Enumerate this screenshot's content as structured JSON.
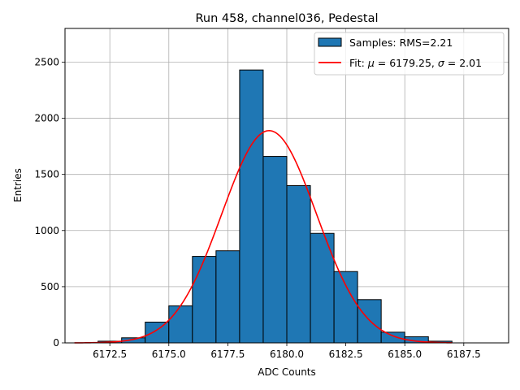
{
  "chart_data": {
    "type": "bar",
    "title": "Run 458, channel036, Pedestal",
    "xlabel": "ADC Counts",
    "ylabel": "Entries",
    "xlim": [
      6170.6,
      6189.4
    ],
    "ylim": [
      0,
      2800
    ],
    "grid": true,
    "legend_position": "top-right",
    "x_ticks": [
      6172.5,
      6175.0,
      6177.5,
      6180.0,
      6182.5,
      6185.0,
      6187.5
    ],
    "x_tick_labels": [
      "6172.5",
      "6175.0",
      "6177.5",
      "6180.0",
      "6182.5",
      "6185.0",
      "6187.5"
    ],
    "y_ticks": [
      0,
      500,
      1000,
      1500,
      2000,
      2500
    ],
    "y_tick_labels": [
      "0",
      "500",
      "1000",
      "1500",
      "2000",
      "2500"
    ],
    "histogram": {
      "legend": "Samples: RMS=2.21",
      "color": "#1f77b4",
      "edge_color": "#000000",
      "bins": [
        {
          "x0": 6172,
          "x1": 6173,
          "count": 15
        },
        {
          "x0": 6173,
          "x1": 6174,
          "count": 45
        },
        {
          "x0": 6174,
          "x1": 6175,
          "count": 185
        },
        {
          "x0": 6175,
          "x1": 6176,
          "count": 330
        },
        {
          "x0": 6176,
          "x1": 6177,
          "count": 770
        },
        {
          "x0": 6177,
          "x1": 6178,
          "count": 820
        },
        {
          "x0": 6178,
          "x1": 6179,
          "count": 2430
        },
        {
          "x0": 6179,
          "x1": 6180,
          "count": 1660
        },
        {
          "x0": 6180,
          "x1": 6181,
          "count": 1400
        },
        {
          "x0": 6181,
          "x1": 6182,
          "count": 975
        },
        {
          "x0": 6182,
          "x1": 6183,
          "count": 635
        },
        {
          "x0": 6183,
          "x1": 6184,
          "count": 385
        },
        {
          "x0": 6184,
          "x1": 6185,
          "count": 95
        },
        {
          "x0": 6185,
          "x1": 6186,
          "count": 55
        },
        {
          "x0": 6186,
          "x1": 6187,
          "count": 15
        }
      ]
    },
    "fit": {
      "legend_prefix": "Fit: ",
      "legend_mu_symbol": "μ",
      "legend_mu_part": " = 6179.25, ",
      "legend_sigma_symbol": "σ",
      "legend_sigma_part": " = 2.01",
      "mu": 6179.25,
      "sigma": 2.01,
      "amplitude": 1890,
      "x_range": [
        6171.0,
        6187.0
      ],
      "color": "#ff0000"
    }
  }
}
